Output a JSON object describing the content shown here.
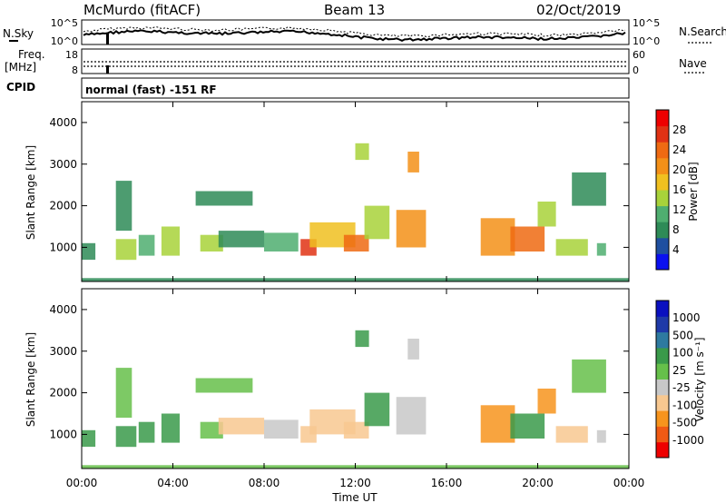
{
  "header": {
    "station": "McMurdo (fitACF)",
    "beam": "Beam 13",
    "date": "02/Oct/2019"
  },
  "strip_panels": {
    "nsky_label": "N.Sky",
    "nsearch_label": "N.Search",
    "noise_ticks": [
      "10^5",
      "10^0"
    ],
    "freq_label_1": "Freq.",
    "freq_label_2": "[MHz]",
    "freq_ticks": [
      "18",
      "8"
    ],
    "nave_label": "Nave",
    "nave_ticks": [
      "60",
      "0"
    ],
    "cpid_label": "CPID",
    "cpid_text": "normal (fast) -151 RF"
  },
  "colors": {
    "power_scale": [
      "#0a10f0",
      "#1f4fa0",
      "#2e8b57",
      "#4fae70",
      "#a8d23a",
      "#f0c020",
      "#f39018",
      "#ef6a12",
      "#e03214",
      "#ee0000"
    ],
    "velocity_scale": [
      "#ee0000",
      "#f05a14",
      "#f7941d",
      "#f8c890",
      "#c8c8c8",
      "#66c04a",
      "#3a9a4a",
      "#2e7aa0",
      "#1f3aa8",
      "#0a10c0"
    ]
  },
  "chart_data": [
    {
      "type": "heatmap",
      "title": "Power",
      "ylabel": "Slant Range [km]",
      "xlabel": "Time UT",
      "x_ticks": [
        "00:00",
        "04:00",
        "08:00",
        "12:00",
        "16:00",
        "20:00",
        "00:00"
      ],
      "y_ticks": [
        "1000",
        "2000",
        "3000",
        "4000"
      ],
      "ylim": [
        180,
        4500
      ],
      "xlim_hours": [
        0,
        24
      ],
      "colorbar_label": "Power [dB]",
      "colorbar_ticks": [
        "28",
        "24",
        "20",
        "16",
        "12",
        "8",
        "4"
      ],
      "colorbar_range": [
        0,
        30
      ],
      "patches": [
        {
          "t0": 0.0,
          "t1": 0.6,
          "r0": 700,
          "r1": 1100,
          "v": 8
        },
        {
          "t0": 1.5,
          "t1": 2.4,
          "r0": 700,
          "r1": 1200,
          "v": 12
        },
        {
          "t0": 1.5,
          "t1": 2.2,
          "r0": 1400,
          "r1": 2600,
          "v": 6
        },
        {
          "t0": 2.5,
          "t1": 3.2,
          "r0": 800,
          "r1": 1300,
          "v": 10
        },
        {
          "t0": 3.5,
          "t1": 4.3,
          "r0": 800,
          "r1": 1500,
          "v": 14
        },
        {
          "t0": 5.2,
          "t1": 6.2,
          "r0": 900,
          "r1": 1300,
          "v": 12
        },
        {
          "t0": 6.0,
          "t1": 8.0,
          "r0": 1000,
          "r1": 1400,
          "v": 8
        },
        {
          "t0": 5.0,
          "t1": 7.5,
          "r0": 2000,
          "r1": 2350,
          "v": 6
        },
        {
          "t0": 8.0,
          "t1": 9.5,
          "r0": 900,
          "r1": 1350,
          "v": 10
        },
        {
          "t0": 9.6,
          "t1": 10.3,
          "r0": 800,
          "r1": 1200,
          "v": 26
        },
        {
          "t0": 10.0,
          "t1": 12.0,
          "r0": 1000,
          "r1": 1600,
          "v": 16
        },
        {
          "t0": 11.5,
          "t1": 12.6,
          "r0": 900,
          "r1": 1300,
          "v": 22
        },
        {
          "t0": 12.4,
          "t1": 13.5,
          "r0": 1200,
          "r1": 2000,
          "v": 14
        },
        {
          "t0": 13.8,
          "t1": 15.1,
          "r0": 1000,
          "r1": 1900,
          "v": 18
        },
        {
          "t0": 12.0,
          "t1": 12.6,
          "r0": 3100,
          "r1": 3500,
          "v": 14
        },
        {
          "t0": 14.3,
          "t1": 14.8,
          "r0": 2800,
          "r1": 3300,
          "v": 20
        },
        {
          "t0": 17.5,
          "t1": 19.0,
          "r0": 800,
          "r1": 1700,
          "v": 18
        },
        {
          "t0": 18.8,
          "t1": 20.3,
          "r0": 900,
          "r1": 1500,
          "v": 22
        },
        {
          "t0": 20.0,
          "t1": 20.8,
          "r0": 1500,
          "r1": 2100,
          "v": 14
        },
        {
          "t0": 20.8,
          "t1": 22.2,
          "r0": 800,
          "r1": 1200,
          "v": 12
        },
        {
          "t0": 21.5,
          "t1": 23.0,
          "r0": 2000,
          "r1": 2800,
          "v": 6
        },
        {
          "t0": 22.6,
          "t1": 23.0,
          "r0": 800,
          "r1": 1100,
          "v": 10
        },
        {
          "t0": 0.0,
          "t1": 24.0,
          "r0": 180,
          "r1": 260,
          "v": 8
        }
      ]
    },
    {
      "type": "heatmap",
      "title": "Velocity",
      "ylabel": "Slant Range [km]",
      "xlabel": "Time UT",
      "x_ticks": [
        "00:00",
        "04:00",
        "08:00",
        "12:00",
        "16:00",
        "20:00",
        "00:00"
      ],
      "y_ticks": [
        "1000",
        "2000",
        "3000",
        "4000"
      ],
      "ylim": [
        180,
        4500
      ],
      "xlim_hours": [
        0,
        24
      ],
      "colorbar_label": "Velocity [m s⁻¹]",
      "colorbar_ticks": [
        "1000",
        "500",
        "100",
        "25",
        "-25",
        "-100",
        "-500",
        "-1000"
      ],
      "colorbar_range": [
        -1000,
        1000
      ],
      "patches": [
        {
          "t0": 0.0,
          "t1": 0.6,
          "r0": 700,
          "r1": 1100,
          "v": 200
        },
        {
          "t0": 1.5,
          "t1": 2.4,
          "r0": 700,
          "r1": 1200,
          "v": 300
        },
        {
          "t0": 1.5,
          "t1": 2.2,
          "r0": 1400,
          "r1": 2600,
          "v": 150
        },
        {
          "t0": 2.5,
          "t1": 3.2,
          "r0": 800,
          "r1": 1300,
          "v": 250
        },
        {
          "t0": 3.5,
          "t1": 4.3,
          "r0": 800,
          "r1": 1500,
          "v": 200
        },
        {
          "t0": 5.2,
          "t1": 6.2,
          "r0": 900,
          "r1": 1300,
          "v": 150
        },
        {
          "t0": 6.0,
          "t1": 8.0,
          "r0": 1000,
          "r1": 1400,
          "v": -300
        },
        {
          "t0": 5.0,
          "t1": 7.5,
          "r0": 2000,
          "r1": 2350,
          "v": 0
        },
        {
          "t0": 8.0,
          "t1": 9.5,
          "r0": 900,
          "r1": 1350,
          "v": -200
        },
        {
          "t0": 9.6,
          "t1": 10.3,
          "r0": 800,
          "r1": 1200,
          "v": -400
        },
        {
          "t0": 10.0,
          "t1": 12.0,
          "r0": 1000,
          "r1": 1600,
          "v": -350
        },
        {
          "t0": 11.5,
          "t1": 12.6,
          "r0": 900,
          "r1": 1300,
          "v": -300
        },
        {
          "t0": 12.4,
          "t1": 13.5,
          "r0": 1200,
          "r1": 2000,
          "v": 200
        },
        {
          "t0": 13.8,
          "t1": 15.1,
          "r0": 1000,
          "r1": 1900,
          "v": -200
        },
        {
          "t0": 12.0,
          "t1": 12.6,
          "r0": 3100,
          "r1": 3500,
          "v": 300
        },
        {
          "t0": 14.3,
          "t1": 14.8,
          "r0": 2800,
          "r1": 3300,
          "v": -100
        },
        {
          "t0": 17.5,
          "t1": 19.0,
          "r0": 800,
          "r1": 1700,
          "v": -500
        },
        {
          "t0": 18.8,
          "t1": 20.3,
          "r0": 900,
          "r1": 1500,
          "v": 200
        },
        {
          "t0": 20.0,
          "t1": 20.8,
          "r0": 1500,
          "r1": 2100,
          "v": -500
        },
        {
          "t0": 20.8,
          "t1": 22.2,
          "r0": 800,
          "r1": 1200,
          "v": -300
        },
        {
          "t0": 21.5,
          "t1": 23.0,
          "r0": 2000,
          "r1": 2800,
          "v": 0
        },
        {
          "t0": 22.6,
          "t1": 23.0,
          "r0": 800,
          "r1": 1100,
          "v": -200
        },
        {
          "t0": 0.0,
          "t1": 24.0,
          "r0": 180,
          "r1": 260,
          "v": 0
        }
      ]
    }
  ]
}
